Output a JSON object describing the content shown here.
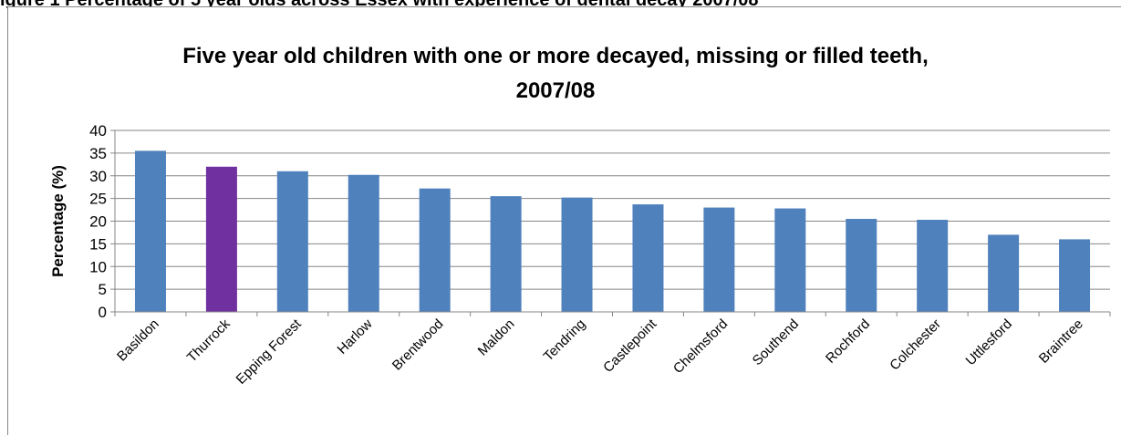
{
  "caption": "igure 1 Percentage of 5 year olds across Essex with experience of dental decay 2007/08",
  "chart_data": {
    "type": "bar",
    "title_line1": "Five year old children with one or more decayed, missing or filled teeth,",
    "title_line2": "2007/08",
    "xlabel": "",
    "ylabel": "Percentage (%)",
    "ylim": [
      0,
      40
    ],
    "yticks": [
      "0",
      "5",
      "10",
      "15",
      "20",
      "25",
      "30",
      "35",
      "40"
    ],
    "categories": [
      "Basildon",
      "Thurrock",
      "Epping Forest",
      "Harlow",
      "Brentwood",
      "Maldon",
      "Tendring",
      "Castlepoint",
      "Chelmsford",
      "Southend",
      "Rochford",
      "Colchester",
      "Uttlesford",
      "Braintree"
    ],
    "values": [
      35.5,
      32,
      31,
      30.2,
      27.2,
      25.5,
      25.2,
      23.7,
      23,
      22.8,
      20.5,
      20.3,
      17,
      16
    ],
    "grid": true,
    "legend": "none",
    "bar_color": "#4F81BD",
    "highlight_color": "#7030A0",
    "highlight_index": 1
  }
}
